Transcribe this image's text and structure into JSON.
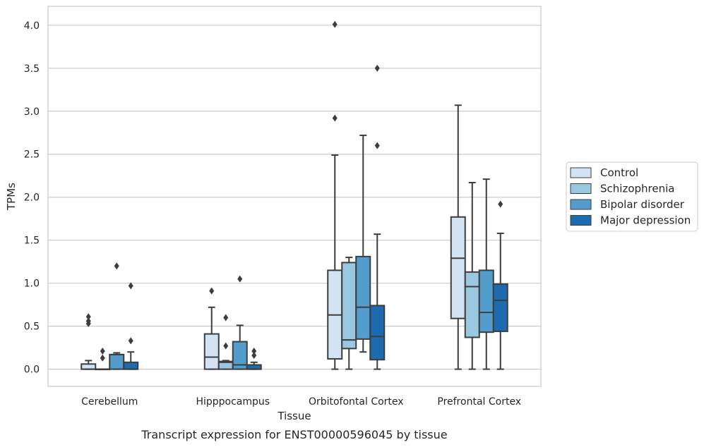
{
  "chart_data": {
    "type": "boxplot",
    "caption": "Transcript expression for ENST00000596045 by tissue",
    "xlabel": "Tissue",
    "ylabel": "TPMs",
    "ylim": [
      -0.2,
      4.22
    ],
    "yticks": [
      "0.0",
      "0.5",
      "1.0",
      "1.5",
      "2.0",
      "2.5",
      "3.0",
      "3.5",
      "4.0"
    ],
    "grid": "horizontal",
    "legend_position": "right",
    "categories": [
      "Cerebellum",
      "Hipppocampus",
      "Orbitofontal Cortex",
      "Prefrontal Cortex"
    ],
    "series": [
      {
        "name": "Control",
        "color": "#d2e3f3",
        "boxes": [
          {
            "q1": 0.0,
            "median": 0.0,
            "q3": 0.06,
            "whislo": 0.0,
            "whishi": 0.1,
            "fliers": [
              0.53,
              0.56,
              0.61
            ]
          },
          {
            "q1": 0.0,
            "median": 0.14,
            "q3": 0.41,
            "whislo": 0.0,
            "whishi": 0.72,
            "fliers": [
              0.91
            ]
          },
          {
            "q1": 0.12,
            "median": 0.63,
            "q3": 1.15,
            "whislo": 0.0,
            "whishi": 2.49,
            "fliers": [
              2.92,
              4.01
            ]
          },
          {
            "q1": 0.59,
            "median": 1.29,
            "q3": 1.77,
            "whislo": 0.0,
            "whishi": 3.07,
            "fliers": []
          }
        ]
      },
      {
        "name": "Schizophrenia",
        "color": "#9ac8e0",
        "boxes": [
          {
            "q1": 0.0,
            "median": 0.0,
            "q3": 0.0,
            "whislo": 0.0,
            "whishi": 0.0,
            "fliers": [
              0.13,
              0.21
            ]
          },
          {
            "q1": 0.0,
            "median": 0.08,
            "q3": 0.09,
            "whislo": 0.0,
            "whishi": 0.1,
            "fliers": [
              0.27,
              0.6
            ]
          },
          {
            "q1": 0.24,
            "median": 0.34,
            "q3": 1.24,
            "whislo": 0.0,
            "whishi": 1.3,
            "fliers": []
          },
          {
            "q1": 0.37,
            "median": 0.96,
            "q3": 1.13,
            "whislo": 0.0,
            "whishi": 2.17,
            "fliers": []
          }
        ]
      },
      {
        "name": "Bipolar disorder",
        "color": "#529dcc",
        "boxes": [
          {
            "q1": 0.0,
            "median": 0.17,
            "q3": 0.17,
            "whislo": 0.0,
            "whishi": 0.19,
            "fliers": [
              1.2
            ]
          },
          {
            "q1": 0.0,
            "median": 0.05,
            "q3": 0.32,
            "whislo": 0.0,
            "whishi": 0.51,
            "fliers": [
              1.05
            ]
          },
          {
            "q1": 0.35,
            "median": 0.72,
            "q3": 1.31,
            "whislo": 0.2,
            "whishi": 2.72,
            "fliers": []
          },
          {
            "q1": 0.43,
            "median": 0.66,
            "q3": 1.15,
            "whislo": 0.0,
            "whishi": 2.21,
            "fliers": []
          }
        ]
      },
      {
        "name": "Major depression",
        "color": "#1c6aaf",
        "boxes": [
          {
            "q1": 0.0,
            "median": 0.0,
            "q3": 0.08,
            "whislo": 0.0,
            "whishi": 0.2,
            "fliers": [
              0.33,
              0.97
            ]
          },
          {
            "q1": 0.0,
            "median": 0.0,
            "q3": 0.05,
            "whislo": 0.0,
            "whishi": 0.08,
            "fliers": [
              0.16,
              0.21
            ]
          },
          {
            "q1": 0.11,
            "median": 0.38,
            "q3": 0.74,
            "whislo": 0.0,
            "whishi": 1.57,
            "fliers": [
              2.6,
              3.5
            ]
          },
          {
            "q1": 0.44,
            "median": 0.8,
            "q3": 0.99,
            "whislo": 0.0,
            "whishi": 1.58,
            "fliers": [
              1.92
            ]
          }
        ]
      }
    ]
  }
}
